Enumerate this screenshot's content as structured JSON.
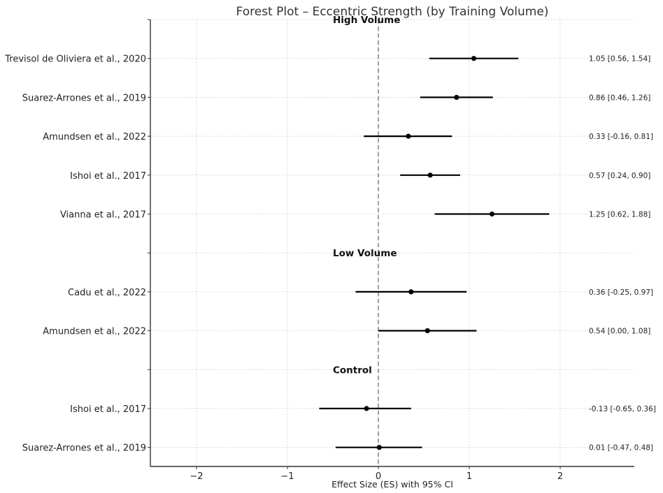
{
  "chart_data": {
    "type": "forest",
    "title": "Forest Plot – Eccentric Strength (by Training Volume)",
    "xlabel": "Effect Size (ES) with 95% CI",
    "ylabel": "",
    "xlim": [
      -2.51,
      2.82
    ],
    "xticks": [
      -2,
      -1,
      0,
      1,
      2
    ],
    "xtick_labels": [
      "−2",
      "−1",
      "0",
      "1",
      "2"
    ],
    "grid": true,
    "reference_line": {
      "x": 0,
      "style": "dashed",
      "color": "#808080"
    },
    "groups": [
      {
        "label": "High Volume",
        "studies": [
          {
            "study": "Trevisol de Oliviera et al., 2020",
            "es": 1.05,
            "ci_low": 0.56,
            "ci_high": 1.54,
            "label": "1.05 [0.56, 1.54]"
          },
          {
            "study": "Suarez-Arrones et al., 2019",
            "es": 0.86,
            "ci_low": 0.46,
            "ci_high": 1.26,
            "label": "0.86 [0.46, 1.26]"
          },
          {
            "study": "Amundsen et al., 2022",
            "es": 0.33,
            "ci_low": -0.16,
            "ci_high": 0.81,
            "label": "0.33 [-0.16, 0.81]"
          },
          {
            "study": "Ishoi et al., 2017",
            "es": 0.57,
            "ci_low": 0.24,
            "ci_high": 0.9,
            "label": "0.57 [0.24, 0.90]"
          },
          {
            "study": "Vianna et al., 2017",
            "es": 1.25,
            "ci_low": 0.62,
            "ci_high": 1.88,
            "label": "1.25 [0.62, 1.88]"
          }
        ]
      },
      {
        "label": "Low Volume",
        "studies": [
          {
            "study": "Cadu et al., 2022",
            "es": 0.36,
            "ci_low": -0.25,
            "ci_high": 0.97,
            "label": "0.36 [-0.25, 0.97]"
          },
          {
            "study": "Amundsen et al., 2022",
            "es": 0.54,
            "ci_low": 0.0,
            "ci_high": 1.08,
            "label": "0.54 [0.00, 1.08]"
          }
        ]
      },
      {
        "label": "Control",
        "studies": [
          {
            "study": "Ishoi et al., 2017",
            "es": -0.13,
            "ci_low": -0.65,
            "ci_high": 0.36,
            "label": "-0.13 [-0.65, 0.36]"
          },
          {
            "study": "Suarez-Arrones et al., 2019",
            "es": 0.01,
            "ci_low": -0.47,
            "ci_high": 0.48,
            "label": "0.01 [-0.47, 0.48]"
          }
        ]
      }
    ],
    "colors": {
      "point": "#000000",
      "ci_line": "#000000",
      "grid": "#d9d9d9",
      "axis": "#333333"
    }
  }
}
